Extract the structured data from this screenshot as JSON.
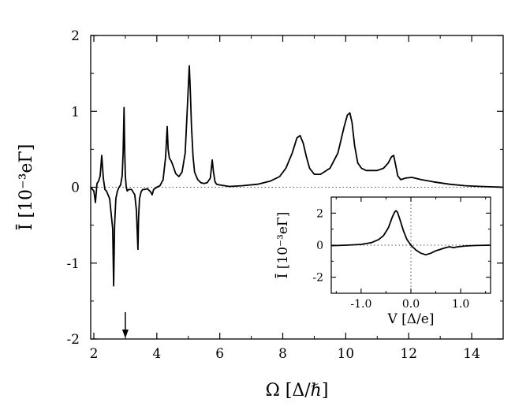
{
  "chart_data": [
    {
      "type": "line",
      "xlabel": "Ω [Δ/ℏ]",
      "ylabel": "Ī [10⁻³eΓ]",
      "xlim": [
        1.9,
        15.0
      ],
      "ylim": [
        -2.0,
        2.0
      ],
      "xticks": [
        2,
        4,
        6,
        8,
        10,
        12,
        14
      ],
      "xtick_labels": [
        "2",
        "4",
        "6",
        "8",
        "10",
        "12",
        "14"
      ],
      "yticks": [
        2,
        1,
        0,
        -1,
        -2
      ],
      "ytick_labels": [
        "2",
        "1",
        "0",
        "-1",
        "-2"
      ],
      "reference_line": {
        "y": 0,
        "style": "dotted"
      },
      "arrow_marker_x": 3.0,
      "series": [
        {
          "x": [
            1.9,
            2.0,
            2.05,
            2.1,
            2.15,
            2.2,
            2.25,
            2.3,
            2.35,
            2.4,
            2.5,
            2.6,
            2.63,
            2.66,
            2.7,
            2.75,
            2.8,
            2.85,
            2.9,
            2.93,
            2.96,
            2.98,
            3.0,
            3.03,
            3.06,
            3.1,
            3.2,
            3.3,
            3.35,
            3.4,
            3.42,
            3.45,
            3.5,
            3.55,
            3.6,
            3.7,
            3.8,
            3.85,
            3.9,
            4.0,
            4.1,
            4.2,
            4.28,
            4.33,
            4.36,
            4.4,
            4.45,
            4.5,
            4.6,
            4.7,
            4.8,
            4.9,
            4.98,
            5.03,
            5.06,
            5.1,
            5.15,
            5.2,
            5.3,
            5.4,
            5.5,
            5.6,
            5.7,
            5.76,
            5.8,
            5.85,
            5.9,
            6.0,
            6.3,
            6.7,
            7.2,
            7.6,
            7.9,
            8.1,
            8.3,
            8.45,
            8.55,
            8.65,
            8.75,
            8.85,
            9.0,
            9.2,
            9.5,
            9.75,
            9.95,
            10.05,
            10.13,
            10.2,
            10.28,
            10.38,
            10.5,
            10.65,
            10.8,
            11.0,
            11.2,
            11.35,
            11.45,
            11.52,
            11.58,
            11.65,
            11.75,
            11.9,
            12.1,
            12.4,
            12.8,
            13.3,
            13.8,
            14.3,
            15.0
          ],
          "y": [
            0.0,
            -0.05,
            -0.2,
            0.05,
            0.08,
            0.15,
            0.42,
            0.12,
            -0.03,
            -0.05,
            -0.15,
            -0.55,
            -1.3,
            -0.5,
            -0.15,
            -0.05,
            0.0,
            0.03,
            0.15,
            0.45,
            1.05,
            0.5,
            0.15,
            0.0,
            -0.05,
            -0.03,
            -0.03,
            -0.1,
            -0.3,
            -0.82,
            -0.4,
            -0.15,
            -0.06,
            -0.03,
            -0.03,
            -0.02,
            -0.06,
            -0.1,
            -0.03,
            0.0,
            0.02,
            0.1,
            0.4,
            0.8,
            0.5,
            0.38,
            0.35,
            0.3,
            0.18,
            0.14,
            0.2,
            0.45,
            1.15,
            1.6,
            1.3,
            0.8,
            0.4,
            0.2,
            0.1,
            0.06,
            0.05,
            0.06,
            0.12,
            0.36,
            0.2,
            0.07,
            0.04,
            0.03,
            0.01,
            0.02,
            0.04,
            0.08,
            0.14,
            0.25,
            0.45,
            0.65,
            0.68,
            0.58,
            0.4,
            0.25,
            0.17,
            0.17,
            0.25,
            0.45,
            0.8,
            0.95,
            0.98,
            0.85,
            0.55,
            0.32,
            0.25,
            0.22,
            0.22,
            0.22,
            0.25,
            0.32,
            0.4,
            0.42,
            0.3,
            0.15,
            0.1,
            0.12,
            0.13,
            0.1,
            0.07,
            0.04,
            0.02,
            0.01,
            0.0
          ]
        }
      ]
    },
    {
      "type": "line",
      "xlabel": "V [Δ/e]",
      "ylabel": "Ī [10⁻³eΓ]",
      "xlim": [
        -1.6,
        1.6
      ],
      "ylim": [
        -3.0,
        3.0
      ],
      "xticks": [
        -1.0,
        0.0,
        1.0
      ],
      "xtick_labels": [
        "-1.0",
        "0.0",
        "1.0"
      ],
      "yticks": [
        2,
        0,
        -2
      ],
      "ytick_labels": [
        "2",
        "0",
        "-2"
      ],
      "reference_lines": [
        {
          "y": 0,
          "style": "dotted"
        },
        {
          "x": 0,
          "style": "dotted"
        }
      ],
      "series": [
        {
          "x": [
            -1.6,
            -1.3,
            -1.0,
            -0.8,
            -0.65,
            -0.55,
            -0.45,
            -0.38,
            -0.33,
            -0.3,
            -0.27,
            -0.22,
            -0.15,
            -0.08,
            0.0,
            0.1,
            0.2,
            0.3,
            0.4,
            0.5,
            0.6,
            0.7,
            0.78,
            0.85,
            0.95,
            1.1,
            1.3,
            1.6
          ],
          "y": [
            -0.03,
            0.0,
            0.05,
            0.15,
            0.35,
            0.6,
            1.1,
            1.7,
            2.05,
            2.15,
            2.05,
            1.6,
            0.9,
            0.35,
            0.0,
            -0.3,
            -0.5,
            -0.6,
            -0.5,
            -0.35,
            -0.25,
            -0.15,
            -0.1,
            -0.15,
            -0.1,
            -0.05,
            -0.02,
            0.0
          ]
        }
      ]
    }
  ]
}
